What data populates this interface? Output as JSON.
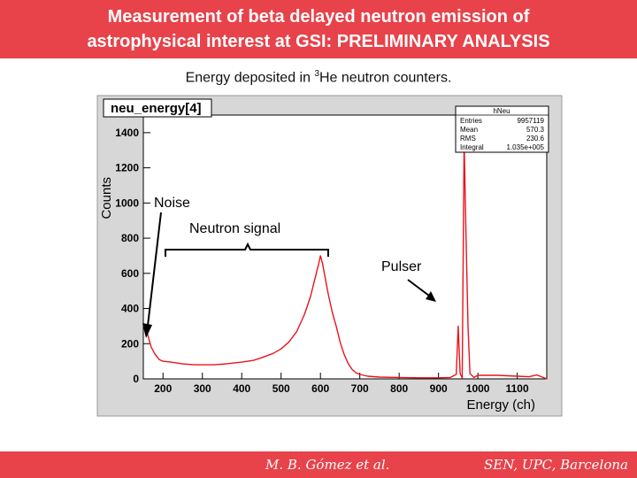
{
  "header": {
    "title_line1": "Measurement of beta delayed neutron emission of",
    "title_line2": "astrophysical interest at GSI: PRELIMINARY ANALYSIS"
  },
  "caption": {
    "prefix": "Energy deposited in ",
    "sup": "3",
    "suffix": "He neutron counters."
  },
  "footer": {
    "authors": "M. B. Gómez et al.",
    "affiliation": "SEN, UPC, Barcelona"
  },
  "colors": {
    "accent": "#e8424a",
    "histogram": "#e8141e",
    "frame_bg": "#d7d7d7"
  },
  "chart_data": {
    "type": "line",
    "title": "neu_energy[4]",
    "xlabel": "Energy (ch)",
    "ylabel": "Counts",
    "xlim": [
      150,
      1175
    ],
    "ylim": [
      0,
      1500
    ],
    "xticks": [
      200,
      300,
      400,
      500,
      600,
      700,
      800,
      900,
      1000,
      1100
    ],
    "yticks": [
      0,
      200,
      400,
      600,
      800,
      1000,
      1200,
      1400
    ],
    "stats": {
      "name": "hNeu",
      "rows": [
        {
          "label": "Entries",
          "value": "9957119"
        },
        {
          "label": "Mean",
          "value": "570.3"
        },
        {
          "label": "RMS",
          "value": "230.6"
        },
        {
          "label": "Integral",
          "value": "1.035e+005"
        }
      ]
    },
    "annotations": {
      "noise": "Noise",
      "neutron": "Neutron signal",
      "pulser": "Pulser"
    },
    "series": [
      {
        "x": [
          160,
          170,
          180,
          190,
          200,
          220,
          250,
          280,
          300,
          330,
          360,
          400,
          430,
          450,
          480,
          500,
          520,
          540,
          560,
          575,
          585,
          595,
          600,
          605,
          610,
          620,
          630,
          640,
          650,
          660,
          670,
          680,
          690,
          700,
          720,
          750,
          800,
          850,
          900,
          930,
          945,
          950,
          955,
          960,
          965,
          970,
          975,
          980,
          990,
          1000,
          1050,
          1100,
          1130,
          1150,
          1175
        ],
        "y": [
          260,
          180,
          140,
          110,
          100,
          95,
          85,
          80,
          80,
          80,
          85,
          95,
          105,
          120,
          145,
          170,
          210,
          270,
          370,
          470,
          560,
          650,
          700,
          660,
          600,
          480,
          380,
          300,
          210,
          140,
          90,
          55,
          35,
          25,
          15,
          10,
          8,
          6,
          6,
          8,
          25,
          300,
          30,
          5,
          1350,
          800,
          300,
          30,
          8,
          20,
          20,
          15,
          12,
          22,
          0
        ]
      }
    ]
  }
}
